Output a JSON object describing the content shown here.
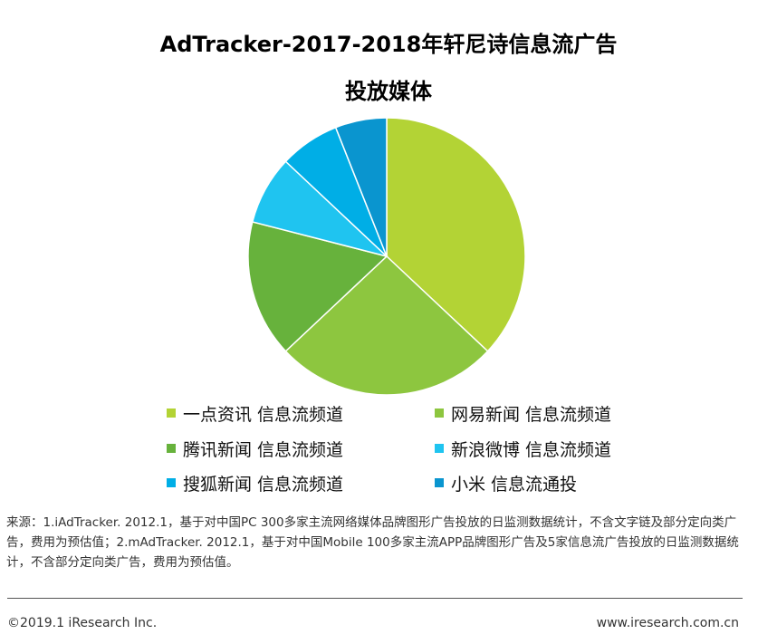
{
  "title": {
    "line1": "AdTracker-2017-2018年轩尼诗信息流广告",
    "line2": "投放媒体"
  },
  "chart_data": {
    "type": "pie",
    "title": "AdTracker-2017-2018年轩尼诗信息流广告投放媒体",
    "legend_position": "bottom",
    "slices": [
      {
        "label": "一点资讯 信息流频道",
        "value": 37.0,
        "color": "#b3d335"
      },
      {
        "label": "网易新闻 信息流频道",
        "value": 26.0,
        "color": "#8dc63f"
      },
      {
        "label": "腾讯新闻 信息流频道",
        "value": 16.0,
        "color": "#67b23c"
      },
      {
        "label": "新浪微博 信息流频道",
        "value": 8.0,
        "color": "#1fc4f0"
      },
      {
        "label": "搜狐新闻 信息流频道",
        "value": 7.0,
        "color": "#00aee6"
      },
      {
        "label": "小米 信息流通投",
        "value": 6.0,
        "color": "#0a95cf"
      }
    ]
  },
  "source_text": "来源：1.iAdTracker. 2012.1，基于对中国PC 300多家主流网络媒体品牌图形广告投放的日监测数据统计，不含文字链及部分定向类广告，费用为预估值；2.mAdTracker. 2012.1，基于对中国Mobile 100多家主流APP品牌图形广告及5家信息流广告投放的日监测数据统计，不含部分定向类广告，费用为预估值。",
  "footer": {
    "copyright": "©2019.1  iResearch Inc.",
    "website": "www.iresearch.com.cn"
  }
}
